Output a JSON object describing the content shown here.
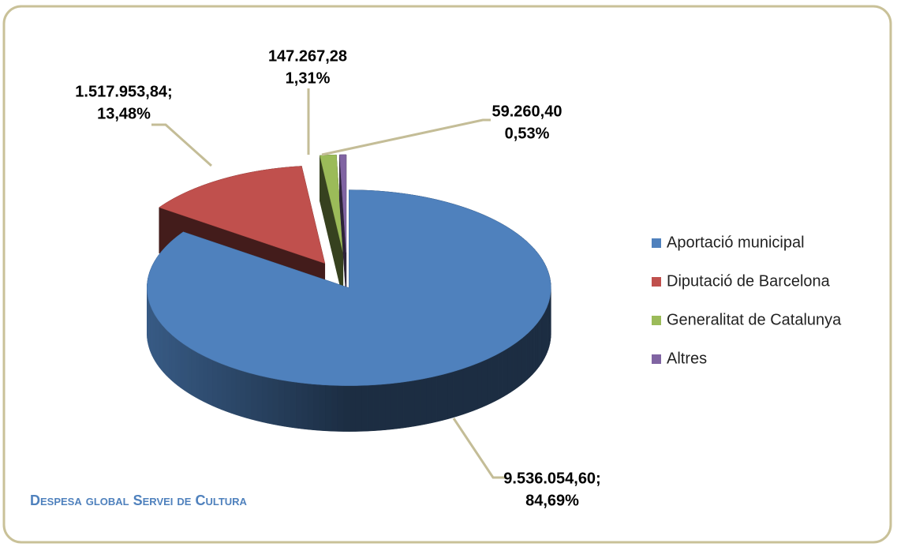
{
  "chart_data": {
    "type": "pie",
    "title": "Despesa global Servei de Cultura",
    "categories": [
      "Aportació municipal",
      "Diputació de Barcelona",
      "Generalitat de Catalunya",
      "Altres"
    ],
    "values": [
      9536054.6,
      1517953.84,
      147267.28,
      59260.4
    ],
    "value_labels": [
      "9.536.054,60;",
      "1.517.953,84;",
      "147.267,28",
      "59.260,40"
    ],
    "percentages": [
      84.69,
      13.48,
      1.31,
      0.53
    ],
    "percentage_labels": [
      "84,69%",
      "13,48%",
      "1,31%",
      "0,53%"
    ],
    "colors": [
      "#4f81bd",
      "#c0504d",
      "#9bbb59",
      "#8064a2"
    ],
    "legend": "right"
  }
}
